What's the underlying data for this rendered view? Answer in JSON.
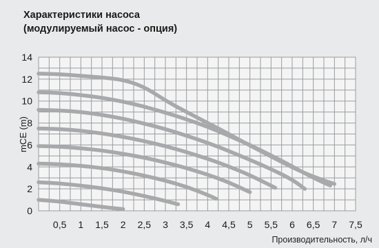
{
  "page": {
    "title_line1": "Характеристики насоса",
    "title_line2": "(модулируемый насос - опция)"
  },
  "chart_data": {
    "type": "line",
    "title": "Характеристики насоса (модулируемый насос - опция)",
    "xlabel": "Производительность, л/ч",
    "ylabel": "mCE (m)",
    "xlim": [
      0,
      7.5
    ],
    "ylim": [
      0,
      14
    ],
    "x_ticks": [
      "0,5",
      "1",
      "1,5",
      "2",
      "2,5",
      "3",
      "3,5",
      "4",
      "4,5",
      "5",
      "5,5",
      "6",
      "6,5",
      "7",
      "7,5"
    ],
    "y_ticks": [
      "0",
      "2",
      "4",
      "6",
      "8",
      "10",
      "12",
      "14"
    ],
    "grid": true,
    "series": [
      {
        "x": [
          0,
          0.5,
          1,
          1.5,
          2
        ],
        "y": [
          1.0,
          0.85,
          0.6,
          0.35,
          0.15
        ]
      },
      {
        "x": [
          0,
          0.5,
          1,
          1.5,
          2,
          2.5,
          3,
          3.3
        ],
        "y": [
          2.6,
          2.5,
          2.3,
          2.05,
          1.75,
          1.35,
          0.9,
          0.6
        ]
      },
      {
        "x": [
          0,
          0.5,
          1,
          1.5,
          2,
          2.5,
          3,
          3.5,
          4,
          4.2
        ],
        "y": [
          4.3,
          4.25,
          4.1,
          3.9,
          3.6,
          3.2,
          2.75,
          2.2,
          1.45,
          1.1
        ]
      },
      {
        "x": [
          0,
          0.5,
          1,
          1.5,
          2,
          2.5,
          3,
          3.5,
          4,
          4.5,
          5
        ],
        "y": [
          5.9,
          5.85,
          5.7,
          5.5,
          5.2,
          4.85,
          4.4,
          3.9,
          3.3,
          2.6,
          1.7
        ]
      },
      {
        "x": [
          0,
          0.5,
          1,
          1.5,
          2,
          2.5,
          3,
          3.5,
          4,
          4.5,
          5,
          5.6
        ],
        "y": [
          7.5,
          7.45,
          7.3,
          7.05,
          6.75,
          6.35,
          5.9,
          5.35,
          4.75,
          4.05,
          3.25,
          2.1
        ]
      },
      {
        "x": [
          0,
          0.5,
          1,
          1.5,
          2,
          2.5,
          3,
          3.5,
          4,
          4.5,
          5,
          5.5,
          6,
          6.3
        ],
        "y": [
          9.2,
          9.15,
          9.0,
          8.75,
          8.4,
          7.95,
          7.45,
          6.85,
          6.2,
          5.45,
          4.65,
          3.8,
          2.85,
          2.0
        ]
      },
      {
        "x": [
          0,
          0.5,
          1,
          1.5,
          2,
          2.5,
          3,
          3.5,
          4,
          4.5,
          5,
          5.5,
          6,
          6.5,
          6.9
        ],
        "y": [
          10.8,
          10.75,
          10.55,
          10.3,
          9.95,
          9.5,
          8.95,
          8.35,
          7.65,
          6.85,
          6.0,
          5.05,
          4.05,
          3.0,
          2.3
        ]
      },
      {
        "x": [
          0,
          0.5,
          1,
          1.5,
          2,
          2.5,
          3,
          3.5,
          4,
          4.5,
          5,
          5.5,
          6,
          6.5,
          7
        ],
        "y": [
          12.5,
          12.45,
          12.3,
          12.15,
          11.95,
          11.3,
          10.05,
          9.0,
          8.0,
          7.0,
          5.95,
          4.95,
          3.95,
          3.1,
          2.45
        ]
      }
    ]
  }
}
